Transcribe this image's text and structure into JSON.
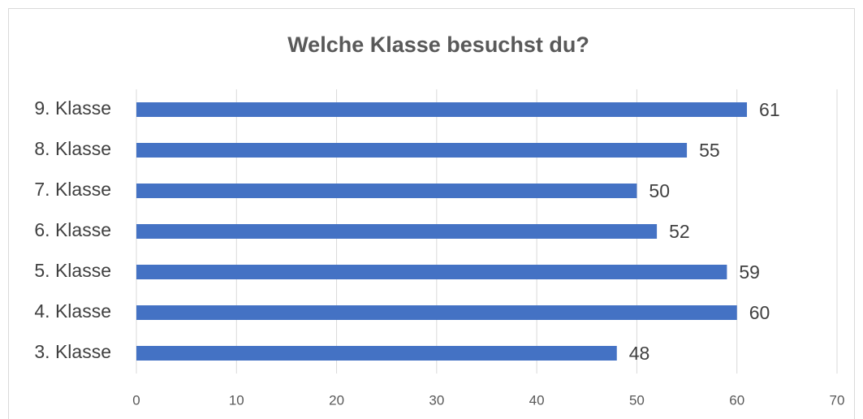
{
  "chart_data": {
    "type": "hbar",
    "title": "Welche Klasse besuchst du?",
    "categories": [
      "9. Klasse",
      "8. Klasse",
      "7. Klasse",
      "6. Klasse",
      "5. Klasse",
      "4. Klasse",
      "3. Klasse"
    ],
    "values": [
      61,
      55,
      50,
      52,
      59,
      60,
      48
    ],
    "color": "#4472c4",
    "xlim": [
      0,
      70
    ],
    "xticks": [
      0,
      10,
      20,
      30,
      40,
      50,
      60,
      70
    ],
    "grid": true
  }
}
